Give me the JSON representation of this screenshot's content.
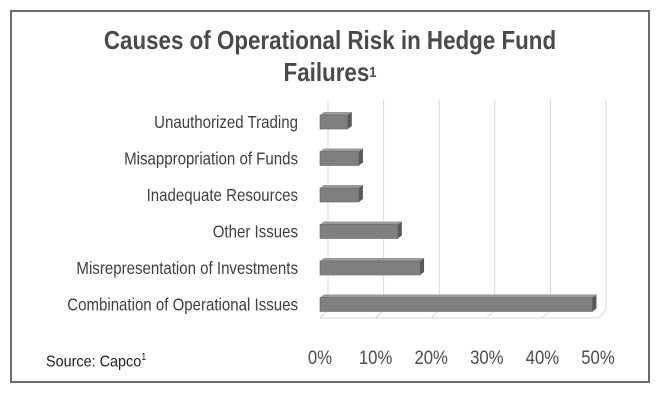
{
  "title": "Causes of Operational Risk in Hedge Fund Failures",
  "title_sup": "1",
  "source": "Source: Capco",
  "source_sup": "1",
  "colors": {
    "bar_front": "#7f7f7f",
    "bar_top": "#9a9a9a",
    "bar_side": "#5a5a5a",
    "grid": "#d9d9d9",
    "frame": "#6b6b6b"
  },
  "chart_data": {
    "type": "bar",
    "orientation": "horizontal",
    "title": "Causes of Operational Risk in Hedge Fund Failures",
    "categories": [
      "Unauthorized Trading",
      "Misappropriation of Funds",
      "Inadequate Resources",
      "Other Issues",
      "Misrepresentation of Investments",
      "Combination of Operational Issues"
    ],
    "values": [
      5,
      7,
      7,
      14,
      18,
      49
    ],
    "unit": "%",
    "xlim": [
      0,
      50
    ],
    "ticks": [
      0,
      10,
      20,
      30,
      40,
      50
    ],
    "tick_labels": [
      "0%",
      "10%",
      "20%",
      "30%",
      "40%",
      "50%"
    ],
    "xlabel": "",
    "ylabel": "",
    "grid": true,
    "style": "3d"
  }
}
